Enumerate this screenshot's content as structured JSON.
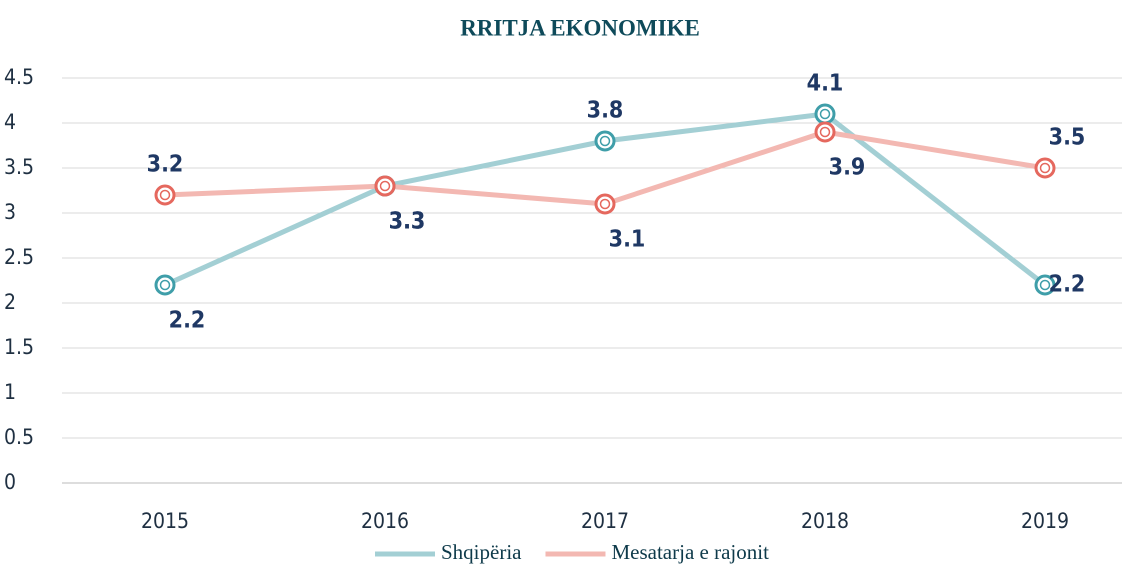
{
  "chart_data": {
    "type": "line",
    "title": "RRITJA EKONOMIKE",
    "categories": [
      "2015",
      "2016",
      "2017",
      "2018",
      "2019"
    ],
    "series": [
      {
        "name": "Shqipëria",
        "color": "#a3cfd4",
        "marker_color": "#3f9ea9",
        "values": [
          2.2,
          3.3,
          3.8,
          4.1,
          2.2
        ]
      },
      {
        "name": "Mesatarja e rajonit",
        "color": "#f3b8b2",
        "marker_color": "#e5685e",
        "values": [
          3.2,
          3.3,
          3.1,
          3.9,
          3.5
        ]
      }
    ],
    "ylim": [
      0,
      4.5
    ],
    "yticks": [
      {
        "value": 0,
        "label": "0"
      },
      0.5,
      1,
      1.5,
      2,
      2.5,
      3,
      3.5,
      4,
      4.5
    ],
    "grid": true,
    "legend": "bottom"
  }
}
